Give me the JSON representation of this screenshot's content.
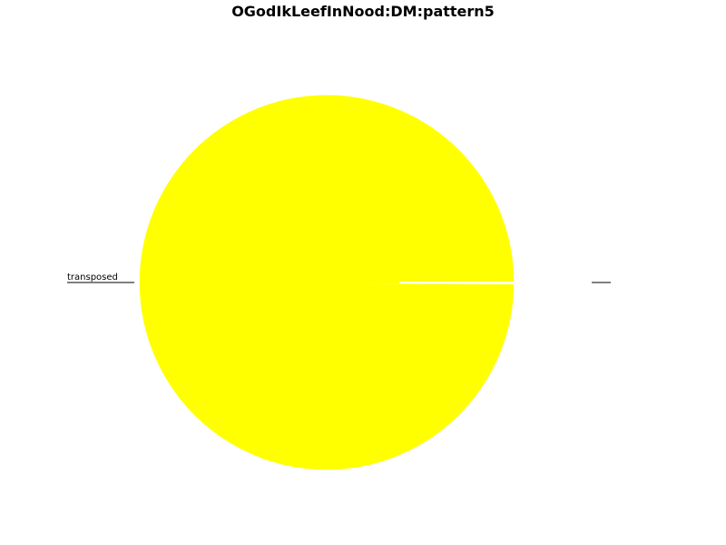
{
  "title": "OGodIkLeefInNood:DM:pattern5",
  "chart_data": {
    "type": "pie",
    "title": "OGodIkLeefInNood:DM:pattern5",
    "slices": [
      {
        "label": "transposed",
        "value": 99.9,
        "color": "#ffff00"
      },
      {
        "label": "",
        "value": 0.1,
        "color": "#ffff00"
      }
    ],
    "legend": "none"
  }
}
